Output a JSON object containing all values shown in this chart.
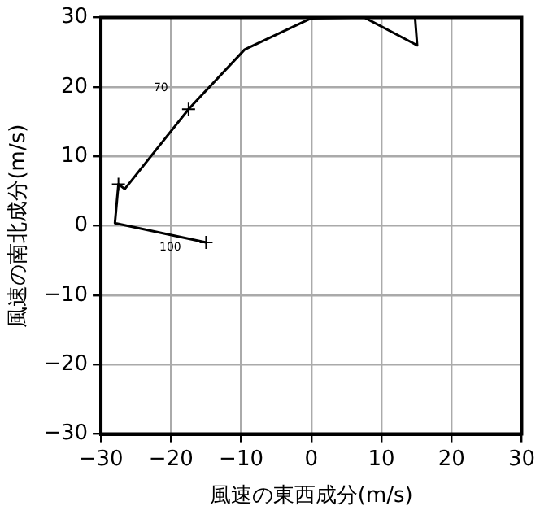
{
  "chart_data": {
    "type": "line",
    "xlabel": "風速の東西成分(m/s)",
    "ylabel": "風速の南北成分(m/s)",
    "series": [
      {
        "color": "#000000",
        "x": [
          -15,
          -28,
          -27.5,
          -26.6,
          -17.5,
          -9.5,
          0,
          7.6,
          15.1,
          14.8
        ],
        "values": [
          -2.4,
          0.4,
          6,
          5.3,
          16.8,
          25.4,
          29.9,
          30,
          26,
          30
        ]
      },
      {
        "type": "scatter",
        "color": "#000000",
        "marker": "cross",
        "x": [
          -15,
          -27.5,
          -17.5
        ],
        "values": [
          -2.4,
          6,
          16.8
        ]
      }
    ],
    "annotations": [
      {
        "text": "70",
        "x": -17.5,
        "y": 16.8
      },
      {
        "text": "100",
        "x": -15,
        "y": -2.4
      }
    ],
    "xlim": [
      -30,
      30
    ],
    "ylim": [
      -30,
      30
    ],
    "xticks": [
      -30,
      -20,
      -10,
      0,
      10,
      20,
      30
    ],
    "yticks": [
      -30,
      -20,
      -10,
      0,
      10,
      20,
      30
    ],
    "grid": true,
    "legend": false,
    "marker": "none",
    "line_style": "solid"
  }
}
